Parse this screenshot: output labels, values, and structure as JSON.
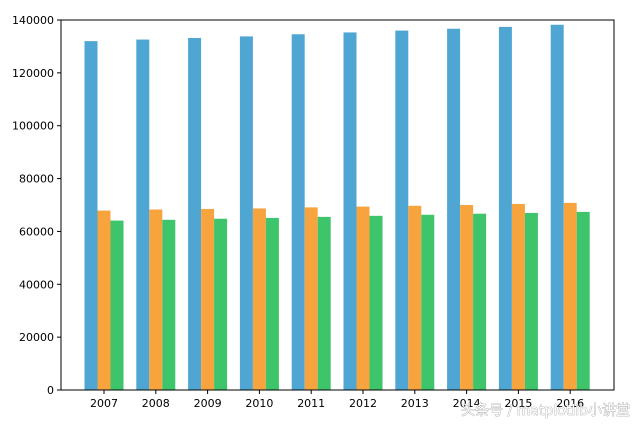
{
  "watermark": "头条号 / matplotlib小讲堂",
  "chart_data": {
    "type": "bar",
    "categories": [
      "2007",
      "2008",
      "2009",
      "2010",
      "2011",
      "2012",
      "2013",
      "2014",
      "2015",
      "2016"
    ],
    "series": [
      {
        "values": [
          132000,
          132600,
          133200,
          133800,
          134600,
          135300,
          136000,
          136700,
          137400,
          138200
        ],
        "color": "#4fa6d3"
      },
      {
        "values": [
          67900,
          68300,
          68500,
          68700,
          69100,
          69400,
          69700,
          70000,
          70400,
          70800
        ],
        "color": "#f7a43f"
      },
      {
        "values": [
          64100,
          64400,
          64800,
          65100,
          65500,
          65900,
          66300,
          66700,
          67000,
          67400
        ],
        "color": "#3ec46a"
      }
    ],
    "y_ticks": [
      "0",
      "20000",
      "40000",
      "60000",
      "80000",
      "100000",
      "120000",
      "140000"
    ],
    "title": "",
    "xlabel": "",
    "ylabel": "",
    "ylim": [
      0,
      140000
    ],
    "grid": false,
    "legend": "none"
  }
}
